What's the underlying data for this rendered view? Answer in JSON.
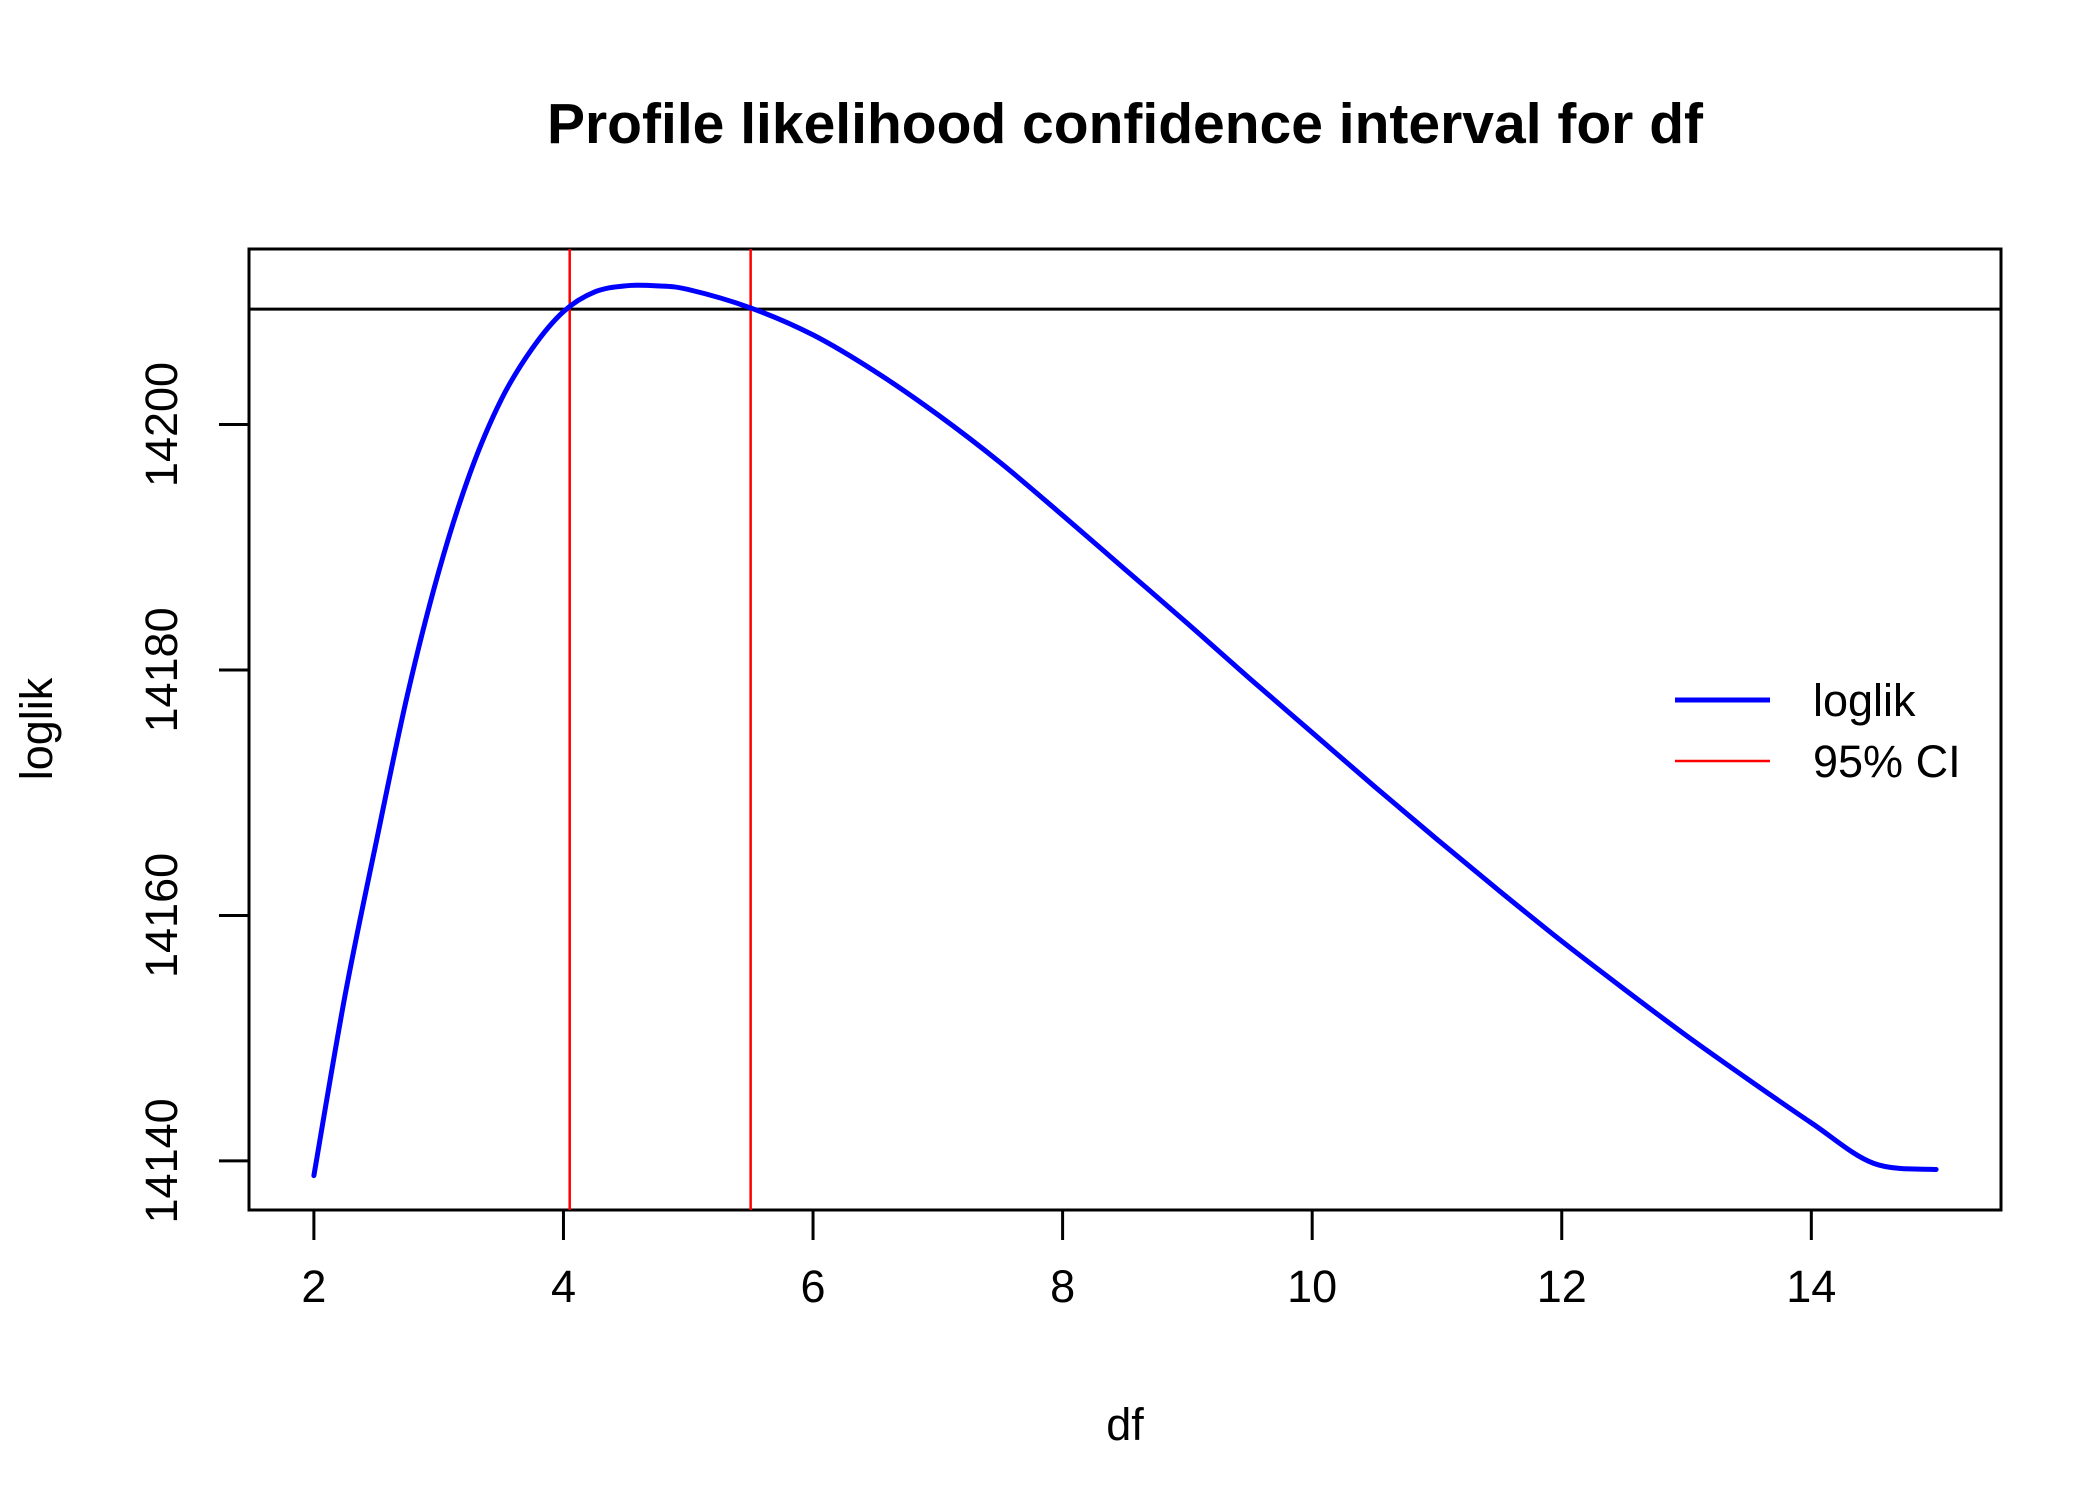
{
  "chart_data": {
    "type": "line",
    "title": "Profile likelihood confidence interval for df",
    "xlabel": "df",
    "ylabel": "loglik",
    "xlim": [
      1.48,
      15.52
    ],
    "ylim": [
      14136,
      14214.3
    ],
    "xticks": [
      2,
      4,
      6,
      8,
      10,
      12,
      14
    ],
    "yticks": [
      14140,
      14160,
      14180,
      14200
    ],
    "grid": false,
    "legend_position": "right",
    "series": [
      {
        "name": "loglik",
        "color": "#0000ff",
        "x": [
          2.0,
          2.25,
          2.5,
          2.75,
          3.0,
          3.25,
          3.5,
          3.75,
          4.0,
          4.25,
          4.5,
          4.75,
          5.0,
          5.5,
          6.0,
          6.5,
          7.0,
          7.5,
          8.0,
          8.5,
          9.0,
          9.5,
          10.0,
          10.5,
          11.0,
          11.5,
          12.0,
          12.5,
          13.0,
          13.5,
          14.0,
          14.5,
          15.0
        ],
        "y": [
          14138.8,
          14153.5,
          14166.0,
          14178.0,
          14188.0,
          14196.0,
          14202.0,
          14206.2,
          14209.2,
          14210.8,
          14211.3,
          14211.3,
          14211.0,
          14209.5,
          14207.3,
          14204.3,
          14200.8,
          14196.9,
          14192.6,
          14188.2,
          14183.8,
          14179.3,
          14174.9,
          14170.5,
          14166.2,
          14162.0,
          14157.9,
          14154.0,
          14150.2,
          14146.6,
          14143.1,
          14139.8,
          14139.3
        ]
      }
    ],
    "reference_lines": {
      "horizontal": {
        "y": 14209.4,
        "color": "#000000"
      },
      "vertical": {
        "name": "95% CI",
        "color": "#ff0000",
        "x": [
          4.05,
          5.5
        ]
      }
    },
    "legend": [
      {
        "label": "loglik",
        "color": "#0000ff"
      },
      {
        "label": "95% CI",
        "color": "#ff0000"
      }
    ]
  }
}
